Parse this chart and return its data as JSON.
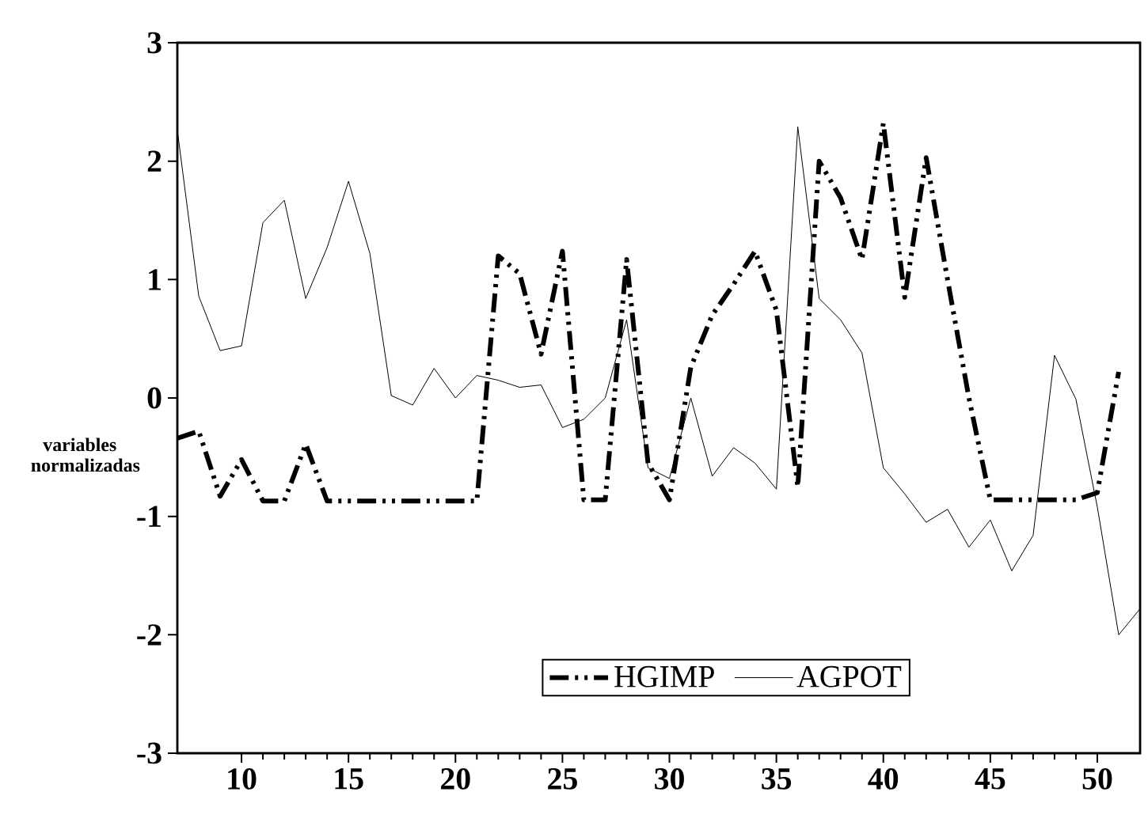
{
  "chart_data": {
    "type": "line",
    "ylabel": "variables normalizadas",
    "x": [
      7,
      8,
      9,
      10,
      11,
      12,
      13,
      14,
      15,
      16,
      17,
      18,
      19,
      20,
      21,
      22,
      23,
      24,
      25,
      26,
      27,
      28,
      29,
      30,
      31,
      32,
      33,
      34,
      35,
      36,
      37,
      38,
      39,
      40,
      41,
      42,
      43,
      44,
      45,
      46,
      47,
      48,
      49,
      50,
      51,
      52
    ],
    "series": [
      {
        "name": "HGIMP",
        "color": "#000000",
        "line_style": "dashed",
        "values": [
          -0.34,
          -0.28,
          -0.83,
          -0.52,
          -0.87,
          -0.87,
          -0.39,
          -0.87,
          -0.87,
          -0.87,
          -0.87,
          -0.87,
          -0.87,
          -0.87,
          -0.87,
          1.2,
          1.05,
          0.37,
          1.24,
          -0.86,
          -0.86,
          1.17,
          -0.55,
          -0.86,
          0.26,
          0.7,
          0.96,
          1.24,
          0.74,
          -0.75,
          2.0,
          1.69,
          1.17,
          2.32,
          0.85,
          2.03,
          1.0,
          0.0,
          -0.86,
          -0.86,
          -0.86,
          -0.86,
          -0.86,
          -0.8,
          0.22,
          null
        ]
      },
      {
        "name": "AGPOT",
        "color": "#000000",
        "line_style": "solid",
        "values": [
          2.26,
          0.86,
          0.4,
          0.44,
          1.48,
          1.67,
          0.84,
          1.27,
          1.83,
          1.22,
          0.02,
          -0.06,
          0.25,
          0.0,
          0.19,
          0.15,
          0.09,
          0.11,
          -0.25,
          -0.18,
          0.0,
          0.66,
          -0.59,
          -0.68,
          0.0,
          -0.66,
          -0.42,
          -0.55,
          -0.77,
          2.29,
          0.84,
          0.66,
          0.38,
          -0.59,
          -0.81,
          -1.05,
          -0.94,
          -1.26,
          -1.03,
          -1.46,
          -1.16,
          0.36,
          -0.01,
          -0.92,
          -2.0,
          -1.78
        ]
      }
    ],
    "xlim": [
      7,
      52
    ],
    "xticks": [
      10,
      15,
      20,
      25,
      30,
      35,
      40,
      45,
      50
    ],
    "ylim": [
      -3,
      3
    ],
    "yticks": [
      -3,
      -2,
      -1,
      0,
      1,
      2,
      3
    ],
    "grid": false,
    "legend": "bottom"
  }
}
